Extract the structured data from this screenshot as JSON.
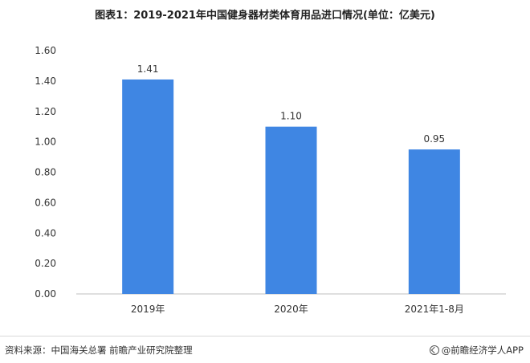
{
  "chart_data": {
    "type": "bar",
    "title": "图表1：2019-2021年中国健身器材类体育用品进口情况(单位：亿美元)",
    "categories": [
      "2019年",
      "2020年",
      "2021年1-8月"
    ],
    "values": [
      1.41,
      1.1,
      0.95
    ],
    "data_labels": [
      "1.41",
      "1.10",
      "0.95"
    ],
    "ylim": [
      0,
      1.6
    ],
    "yticks": [
      0,
      0.2,
      0.4,
      0.6,
      0.8,
      1.0,
      1.2,
      1.4,
      1.6
    ],
    "ytick_labels": [
      "0.00",
      "0.20",
      "0.40",
      "0.60",
      "0.80",
      "1.00",
      "1.20",
      "1.40",
      "1.60"
    ],
    "xlabel": "",
    "ylabel": "",
    "grid": false,
    "bar_color": "#3f86e3"
  },
  "footer": {
    "source": "资料来源：中国海关总署 前瞻产业研究院整理",
    "brand": "@前瞻经济学人APP"
  }
}
